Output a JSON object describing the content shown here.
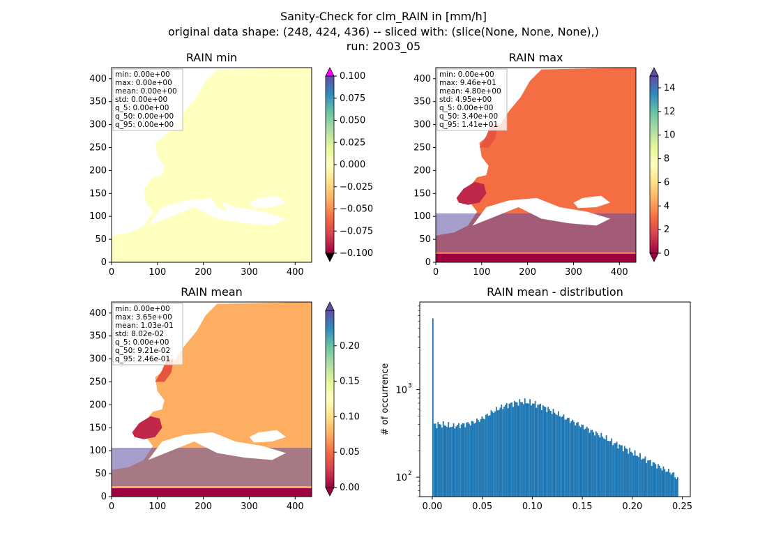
{
  "figure": {
    "title_lines": [
      "Sanity-Check for clm_RAIN in [mm/h]",
      "original data shape: (248, 424, 436) -- sliced with: (slice(None, None, None),)",
      "run: 2003_05"
    ]
  },
  "chart_data": [
    {
      "type": "heatmap",
      "title": "RAIN min",
      "xlim": [
        0,
        436
      ],
      "ylim": [
        0,
        424
      ],
      "xticks": [
        "0",
        "100",
        "200",
        "300",
        "400"
      ],
      "yticks": [
        "0",
        "50",
        "100",
        "150",
        "200",
        "250",
        "300",
        "350",
        "400"
      ],
      "colormap": "Spectral",
      "colorbar": {
        "range": [
          -0.1,
          0.1
        ],
        "ticks": [
          "0.100",
          "0.075",
          "0.050",
          "0.025",
          "0.000",
          "−0.025",
          "−0.050",
          "−0.075",
          "−0.100"
        ],
        "extend_top_color": "#ff00ff",
        "extend_bottom_color": "#000000"
      },
      "stats": [
        "min: 0.00e+00",
        "max: 0.00e+00",
        "mean: 0.00e+00",
        "std: 0.00e+00",
        "q_5: 0.00e+00",
        "q_50: 0.00e+00",
        "q_95: 0.00e+00"
      ]
    },
    {
      "type": "heatmap",
      "title": "RAIN max",
      "xlim": [
        0,
        436
      ],
      "ylim": [
        0,
        424
      ],
      "xticks": [
        "0",
        "100",
        "200",
        "300",
        "400"
      ],
      "yticks": [
        "0",
        "50",
        "100",
        "150",
        "200",
        "250",
        "300",
        "350",
        "400"
      ],
      "colormap": "Spectral",
      "colorbar": {
        "range": [
          0,
          15
        ],
        "ticks": [
          "14",
          "12",
          "10",
          "8",
          "6",
          "4",
          "2",
          "0"
        ]
      },
      "stats": [
        "min: 0.00e+00",
        "max: 9.46e+01",
        "mean: 4.80e+00",
        "std: 4.95e+00",
        "q_5: 0.00e+00",
        "q_50: 3.40e+00",
        "q_95: 1.41e+01"
      ]
    },
    {
      "type": "heatmap",
      "title": "RAIN mean",
      "xlim": [
        0,
        436
      ],
      "ylim": [
        0,
        424
      ],
      "xticks": [
        "0",
        "100",
        "200",
        "300",
        "400"
      ],
      "yticks": [
        "0",
        "50",
        "100",
        "150",
        "200",
        "250",
        "300",
        "350",
        "400"
      ],
      "colormap": "Spectral",
      "colorbar": {
        "range": [
          0,
          0.25
        ],
        "ticks": [
          "0.20",
          "0.15",
          "0.10",
          "0.05",
          "0.00"
        ]
      },
      "stats": [
        "min: 0.00e+00",
        "max: 3.65e+00",
        "mean: 1.03e-01",
        "std: 8.02e-02",
        "q_5: 0.00e+00",
        "q_50: 9.21e-02",
        "q_95: 2.46e-01"
      ]
    },
    {
      "type": "bar",
      "title": "RAIN mean - distribution",
      "ylabel": "# of occurrence",
      "xlabel": "",
      "yscale": "log",
      "xlim": [
        -0.0125,
        0.258
      ],
      "ylim": [
        60,
        10000
      ],
      "xticks": [
        "0.00",
        "0.05",
        "0.10",
        "0.15",
        "0.20",
        "0.25"
      ],
      "yticks": [
        "10",
        "10"
      ],
      "ytick_exponents": [
        "3",
        "2"
      ],
      "color": "#1f77b4",
      "x": [
        0.0,
        0.01,
        0.02,
        0.03,
        0.04,
        0.05,
        0.06,
        0.07,
        0.08,
        0.09,
        0.1,
        0.11,
        0.12,
        0.13,
        0.14,
        0.15,
        0.16,
        0.17,
        0.18,
        0.19,
        0.2,
        0.21,
        0.22,
        0.23,
        0.24,
        0.245
      ],
      "values": [
        6500,
        400,
        380,
        400,
        420,
        470,
        560,
        640,
        700,
        730,
        700,
        640,
        560,
        490,
        430,
        380,
        330,
        290,
        250,
        220,
        190,
        165,
        145,
        125,
        110,
        95
      ],
      "spike": {
        "x": 0.0,
        "value": 6500
      }
    }
  ]
}
